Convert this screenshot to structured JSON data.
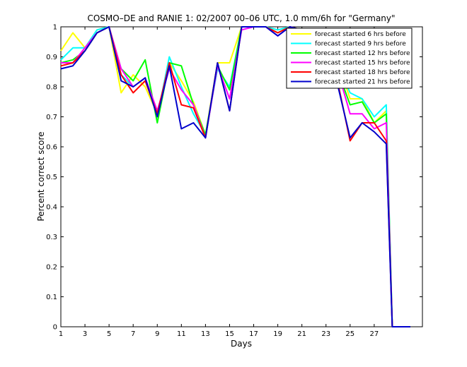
{
  "chart_data": {
    "type": "line",
    "title": "COSMO–DE and RANIE 1: 02/2007 00–06 UTC, 1.0 mm/6h for \"Germany\"",
    "xlabel": "Days",
    "ylabel": "Percent correct score",
    "xlim": [
      1,
      31
    ],
    "ylim": [
      0,
      1
    ],
    "xticks": [
      1,
      3,
      5,
      7,
      9,
      11,
      13,
      15,
      17,
      19,
      21,
      23,
      25,
      27
    ],
    "yticks": [
      0,
      0.1,
      0.2,
      0.3,
      0.4,
      0.5,
      0.6,
      0.7,
      0.8,
      0.9,
      1
    ],
    "grid": false,
    "legend_position": "top-right",
    "x": [
      1,
      2,
      3,
      4,
      5,
      6,
      7,
      8,
      9,
      10,
      11,
      12,
      13,
      14,
      15,
      16,
      17,
      18,
      19,
      20,
      21,
      22,
      23,
      24,
      25,
      26,
      27,
      28,
      28.5,
      29,
      30
    ],
    "series": [
      {
        "name": "forecast started 6 hrs before",
        "color": "#ffff00",
        "values": [
          0.92,
          0.98,
          0.93,
          0.99,
          1.0,
          0.78,
          0.84,
          0.8,
          0.71,
          0.88,
          0.82,
          0.75,
          0.64,
          0.88,
          0.88,
          1.0,
          1.0,
          1.0,
          0.98,
          1.0,
          0.99,
          0.88,
          0.93,
          0.88,
          0.76,
          0.76,
          0.68,
          0.72,
          0.0,
          0.0,
          0.0
        ]
      },
      {
        "name": "forecast started 9 hrs before",
        "color": "#00ffff",
        "values": [
          0.89,
          0.93,
          0.93,
          0.99,
          1.0,
          0.84,
          0.8,
          0.83,
          0.7,
          0.9,
          0.8,
          0.71,
          0.64,
          0.86,
          0.8,
          1.0,
          1.0,
          1.0,
          0.99,
          1.0,
          0.98,
          0.92,
          0.92,
          0.87,
          0.78,
          0.76,
          0.7,
          0.74,
          0.0,
          0.0,
          0.0
        ]
      },
      {
        "name": "forecast started 12 hrs before",
        "color": "#00ff00",
        "values": [
          0.88,
          0.89,
          0.92,
          0.98,
          1.0,
          0.86,
          0.82,
          0.89,
          0.68,
          0.88,
          0.87,
          0.74,
          0.64,
          0.87,
          0.79,
          1.0,
          1.0,
          1.0,
          0.98,
          1.0,
          0.99,
          0.89,
          0.94,
          0.85,
          0.74,
          0.75,
          0.68,
          0.71,
          0.0,
          0.0,
          0.0
        ]
      },
      {
        "name": "forecast started 15 hrs before",
        "color": "#ff00ff",
        "values": [
          0.88,
          0.88,
          0.93,
          0.98,
          1.0,
          0.86,
          0.8,
          0.83,
          0.72,
          0.86,
          0.79,
          0.74,
          0.63,
          0.87,
          0.76,
          0.99,
          1.0,
          1.0,
          0.97,
          1.0,
          0.99,
          0.92,
          0.91,
          0.85,
          0.71,
          0.71,
          0.66,
          0.68,
          0.0,
          0.0,
          0.0
        ]
      },
      {
        "name": "forecast started 18 hrs before",
        "color": "#ff0000",
        "values": [
          0.87,
          0.88,
          0.92,
          0.98,
          1.0,
          0.84,
          0.78,
          0.82,
          0.71,
          0.88,
          0.74,
          0.73,
          0.63,
          0.88,
          0.72,
          1.0,
          1.0,
          1.0,
          0.98,
          1.0,
          0.99,
          0.92,
          0.92,
          0.81,
          0.62,
          0.68,
          0.68,
          0.62,
          0.0,
          0.0,
          0.0
        ]
      },
      {
        "name": "forecast started 21 hrs before",
        "color": "#0000cc",
        "values": [
          0.86,
          0.87,
          0.92,
          0.98,
          1.0,
          0.82,
          0.8,
          0.83,
          0.7,
          0.87,
          0.66,
          0.68,
          0.63,
          0.88,
          0.72,
          1.0,
          1.0,
          1.0,
          0.97,
          1.0,
          0.99,
          0.91,
          0.91,
          0.8,
          0.63,
          0.68,
          0.65,
          0.61,
          0.0,
          0.0,
          0.0
        ]
      }
    ]
  }
}
